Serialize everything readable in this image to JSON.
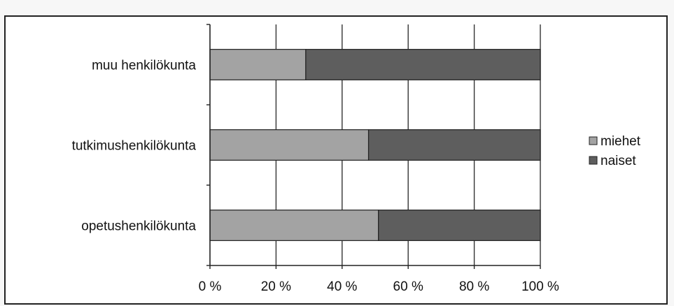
{
  "chart_data": {
    "type": "bar",
    "orientation": "horizontal",
    "stacked": "percent",
    "categories": [
      "muu henkilökunta",
      "tutkimushenkilökunta",
      "opetushenkilökunta"
    ],
    "series": [
      {
        "name": "miehet",
        "values": [
          29,
          48,
          51
        ],
        "color": "#a3a3a3"
      },
      {
        "name": "naiset",
        "values": [
          71,
          52,
          49
        ],
        "color": "#5e5e5e"
      }
    ],
    "x_ticks": [
      "0 %",
      "20 %",
      "40 %",
      "60 %",
      "80 %",
      "100 %"
    ],
    "xlim": [
      0,
      100
    ],
    "grid": true,
    "legend_position": "right"
  }
}
